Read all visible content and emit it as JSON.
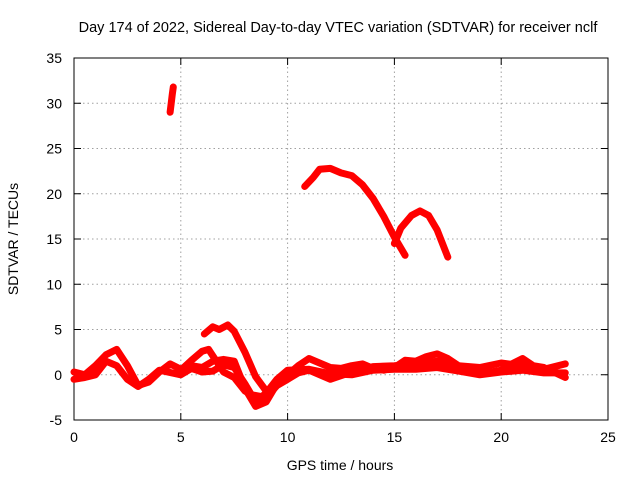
{
  "chart_data": {
    "type": "scatter",
    "title": "Day 174 of 2022, Sidereal Day-to-day VTEC variation (SDTVAR) for receiver nclf",
    "xlabel": "GPS time / hours",
    "ylabel": "SDTVAR / TECUs",
    "xlim": [
      0,
      25
    ],
    "ylim": [
      -5,
      35
    ],
    "x_ticks": [
      0,
      5,
      10,
      15,
      20,
      25
    ],
    "y_ticks": [
      -5,
      0,
      5,
      10,
      15,
      20,
      25,
      30,
      35
    ],
    "grid": true,
    "marker": "+",
    "color": "#ff0000",
    "series": [
      {
        "name": "track-1",
        "points": [
          [
            4.5,
            29
          ],
          [
            4.55,
            30
          ],
          [
            4.6,
            31
          ],
          [
            4.65,
            31.8
          ]
        ]
      },
      {
        "name": "track-2",
        "points": [
          [
            10.8,
            20.8
          ],
          [
            11.2,
            21.8
          ],
          [
            11.5,
            22.7
          ],
          [
            12,
            22.8
          ],
          [
            12.5,
            22.3
          ],
          [
            13,
            22
          ],
          [
            13.5,
            21
          ],
          [
            14,
            19.5
          ],
          [
            14.5,
            17.5
          ],
          [
            15,
            15.2
          ],
          [
            15.5,
            13.2
          ]
        ]
      },
      {
        "name": "track-3",
        "points": [
          [
            15,
            14.5
          ],
          [
            15.3,
            16.2
          ],
          [
            15.8,
            17.6
          ],
          [
            16.2,
            18.1
          ],
          [
            16.6,
            17.6
          ],
          [
            17,
            16
          ],
          [
            17.5,
            13
          ]
        ]
      },
      {
        "name": "track-4",
        "points": [
          [
            6.1,
            4.5
          ],
          [
            6.5,
            5.3
          ],
          [
            6.8,
            5
          ],
          [
            7.2,
            5.5
          ],
          [
            7.5,
            4.8
          ],
          [
            8,
            2.5
          ],
          [
            8.5,
            -0.2
          ],
          [
            9,
            -1.8
          ]
        ]
      },
      {
        "name": "track-5",
        "points": [
          [
            0,
            0.3
          ],
          [
            0.5,
            0
          ],
          [
            1,
            1
          ],
          [
            1.5,
            2.2
          ],
          [
            2,
            2.8
          ],
          [
            2.5,
            1
          ],
          [
            3,
            -1.2
          ],
          [
            3.5,
            -0.8
          ],
          [
            4,
            0.3
          ],
          [
            4.5,
            1.2
          ],
          [
            5,
            0.6
          ],
          [
            5.5,
            1
          ],
          [
            6,
            0.8
          ],
          [
            6.5,
            1.5
          ],
          [
            7,
            1.7
          ],
          [
            7.5,
            1.5
          ],
          [
            8,
            -1.5
          ],
          [
            8.5,
            -3.5
          ],
          [
            9,
            -3
          ],
          [
            9.5,
            -1
          ],
          [
            10,
            0
          ],
          [
            10.5,
            1
          ],
          [
            11,
            1.8
          ],
          [
            11.5,
            1.3
          ],
          [
            12,
            0.8
          ],
          [
            12.5,
            0.7
          ],
          [
            13,
            1
          ],
          [
            13.5,
            1.2
          ],
          [
            14,
            0.7
          ],
          [
            14.5,
            0.5
          ],
          [
            15,
            0.8
          ],
          [
            15.5,
            1.6
          ],
          [
            16,
            1.5
          ],
          [
            16.5,
            2
          ],
          [
            17,
            2.3
          ],
          [
            17.5,
            1.8
          ],
          [
            18,
            1
          ],
          [
            19,
            0.8
          ],
          [
            20,
            1.3
          ],
          [
            21,
            1
          ],
          [
            22,
            0.6
          ],
          [
            23,
            1.2
          ]
        ]
      },
      {
        "name": "track-6",
        "points": [
          [
            0,
            -0.5
          ],
          [
            0.5,
            -0.3
          ],
          [
            1,
            0
          ],
          [
            1.5,
            1.5
          ],
          [
            2,
            1
          ],
          [
            2.5,
            -0.5
          ],
          [
            3,
            -1.3
          ],
          [
            3.5,
            -0.5
          ],
          [
            4,
            0.5
          ],
          [
            5,
            0
          ],
          [
            5.5,
            0.7
          ],
          [
            6,
            0.3
          ],
          [
            6.5,
            0.4
          ],
          [
            7,
            1.1
          ],
          [
            7.5,
            0.8
          ],
          [
            8,
            -1
          ],
          [
            8.5,
            -3
          ],
          [
            9,
            -2
          ],
          [
            9.5,
            -0.5
          ],
          [
            10,
            0.5
          ],
          [
            11,
            0.6
          ],
          [
            12,
            0.1
          ],
          [
            13,
            0
          ],
          [
            14,
            0.5
          ],
          [
            15,
            0.6
          ],
          [
            16,
            0.6
          ],
          [
            17,
            0.8
          ],
          [
            18,
            0.4
          ],
          [
            19,
            0
          ],
          [
            20,
            0.3
          ],
          [
            21,
            0.5
          ],
          [
            22,
            0.2
          ],
          [
            23,
            0.2
          ]
        ]
      },
      {
        "name": "track-7",
        "points": [
          [
            5,
            0.5
          ],
          [
            5.5,
            1.6
          ],
          [
            6,
            2.6
          ],
          [
            6.3,
            2.8
          ],
          [
            7,
            0.3
          ],
          [
            7.5,
            -0.3
          ],
          [
            8,
            -1.8
          ],
          [
            8.3,
            -2.2
          ],
          [
            9,
            -2.5
          ],
          [
            9.5,
            -1.2
          ],
          [
            10,
            -0.5
          ],
          [
            10.5,
            0.2
          ],
          [
            11,
            0.5
          ],
          [
            12,
            -0.5
          ],
          [
            13,
            0.3
          ],
          [
            14,
            0.9
          ],
          [
            15,
            1
          ],
          [
            16,
            1.2
          ],
          [
            17,
            1.5
          ],
          [
            18,
            0.7
          ],
          [
            19,
            0.1
          ],
          [
            20,
            0.5
          ],
          [
            20.5,
            1.2
          ],
          [
            21,
            1.8
          ],
          [
            21.5,
            1
          ],
          [
            22,
            0.8
          ],
          [
            23,
            -0.3
          ]
        ]
      }
    ]
  }
}
